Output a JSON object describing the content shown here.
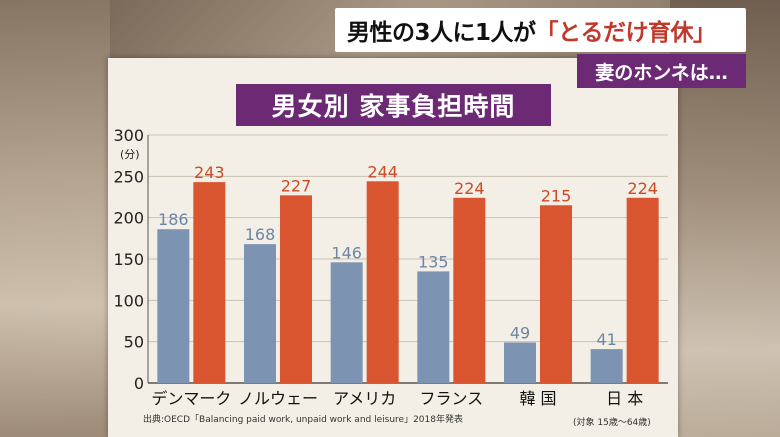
{
  "headline": {
    "prefix": "男性の3人に1人が",
    "accent": "「とるだけ育休」"
  },
  "subtitle": "妻のホンネは…",
  "source": "出典:OECD「Balancing paid work, unpaid work and leisure」2018年発表",
  "note": "(対象 15歳〜64歳)",
  "colors": {
    "male": "#7d93b2",
    "female": "#d9552f",
    "male_label": "#6f85a6",
    "female_label": "#cc4a26",
    "title_bg": "#6b2a73"
  },
  "chart_data": {
    "type": "bar",
    "title": "男女別 家事負担時間",
    "ylabel": "(分)",
    "ylim": [
      0,
      300
    ],
    "yticks": [
      0,
      50,
      100,
      150,
      200,
      250,
      300
    ],
    "categories": [
      "デンマーク",
      "ノルウェー",
      "アメリカ",
      "フランス",
      "韓 国",
      "日 本"
    ],
    "series": [
      {
        "values": [
          186,
          168,
          146,
          135,
          49,
          41
        ]
      },
      {
        "values": [
          243,
          227,
          244,
          224,
          215,
          224
        ]
      }
    ],
    "grid": true,
    "legend": "none"
  }
}
